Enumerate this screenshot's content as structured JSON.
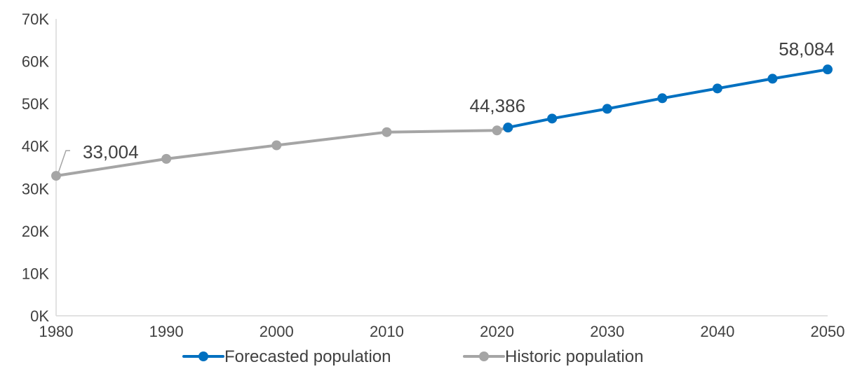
{
  "chart_data": {
    "type": "line",
    "title": "",
    "xlabel": "",
    "ylabel": "",
    "xlim": [
      1980,
      2050
    ],
    "ylim": [
      0,
      70000
    ],
    "x_ticks": [
      "1980",
      "1990",
      "2000",
      "2010",
      "2020",
      "2030",
      "2040",
      "2050"
    ],
    "x_tick_values": [
      1980,
      1990,
      2000,
      2010,
      2020,
      2030,
      2040,
      2050
    ],
    "y_ticks": [
      "0K",
      "10K",
      "20K",
      "30K",
      "40K",
      "50K",
      "60K",
      "70K"
    ],
    "y_tick_values": [
      0,
      10000,
      20000,
      30000,
      40000,
      50000,
      60000,
      70000
    ],
    "grid": false,
    "legend_position": "bottom",
    "series": [
      {
        "name": "Forecasted population",
        "color": "#0070C0",
        "points": [
          {
            "x": 2021,
            "y": 44386
          },
          {
            "x": 2025,
            "y": 46500
          },
          {
            "x": 2030,
            "y": 48800
          },
          {
            "x": 2035,
            "y": 51300
          },
          {
            "x": 2040,
            "y": 53600
          },
          {
            "x": 2045,
            "y": 55900
          },
          {
            "x": 2050,
            "y": 58084
          }
        ]
      },
      {
        "name": "Historic population",
        "color": "#A5A5A5",
        "points": [
          {
            "x": 1980,
            "y": 33004
          },
          {
            "x": 1990,
            "y": 37000
          },
          {
            "x": 2000,
            "y": 40200
          },
          {
            "x": 2010,
            "y": 43300
          },
          {
            "x": 2020,
            "y": 43700
          },
          {
            "x": 2021,
            "y": 44386
          }
        ]
      }
    ],
    "annotations": [
      {
        "text": "33,004",
        "x": 1980,
        "y": 33004
      },
      {
        "text": "44,386",
        "x": 2021,
        "y": 44386
      },
      {
        "text": "58,084",
        "x": 2050,
        "y": 58084
      }
    ]
  }
}
